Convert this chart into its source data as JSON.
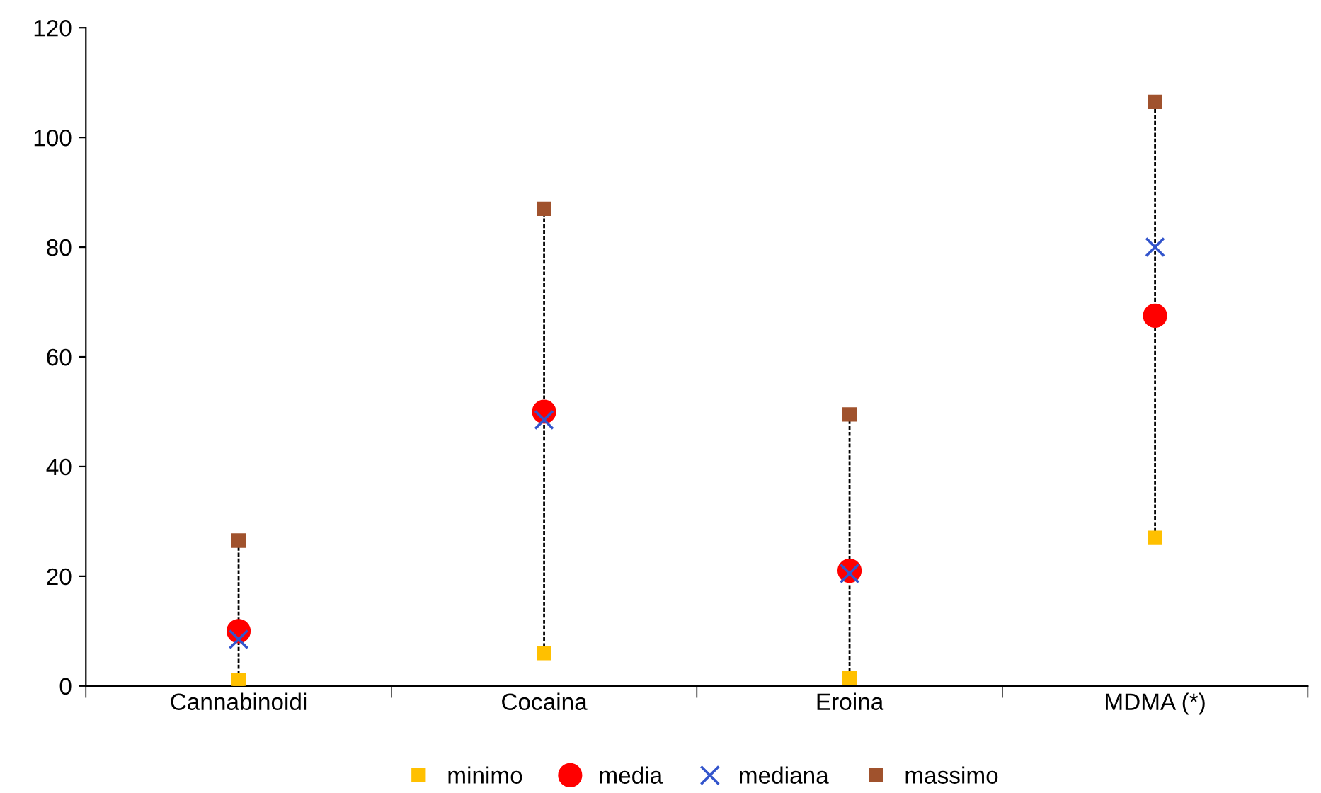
{
  "chart_data": {
    "type": "scatter",
    "categories": [
      "Cannabinoidi",
      "Cocaina",
      "Eroina",
      "MDMA (*)"
    ],
    "series": [
      {
        "name": "minimo",
        "color": "#ffc000",
        "marker": "square",
        "values": [
          1,
          6,
          1.5,
          27
        ]
      },
      {
        "name": "media",
        "color": "#ff0000",
        "marker": "circle",
        "values": [
          10,
          50,
          21,
          67.5
        ]
      },
      {
        "name": "mediana",
        "color": "#3355cc",
        "marker": "cross",
        "values": [
          8.5,
          48.5,
          20.5,
          80
        ]
      },
      {
        "name": "massimo",
        "color": "#a0522d",
        "marker": "square",
        "values": [
          26.5,
          87,
          49.5,
          106.5
        ]
      }
    ],
    "ylim": [
      0,
      120
    ],
    "yticks": [
      0,
      20,
      40,
      60,
      80,
      100,
      120
    ],
    "grid": false,
    "legend": "bottom"
  }
}
